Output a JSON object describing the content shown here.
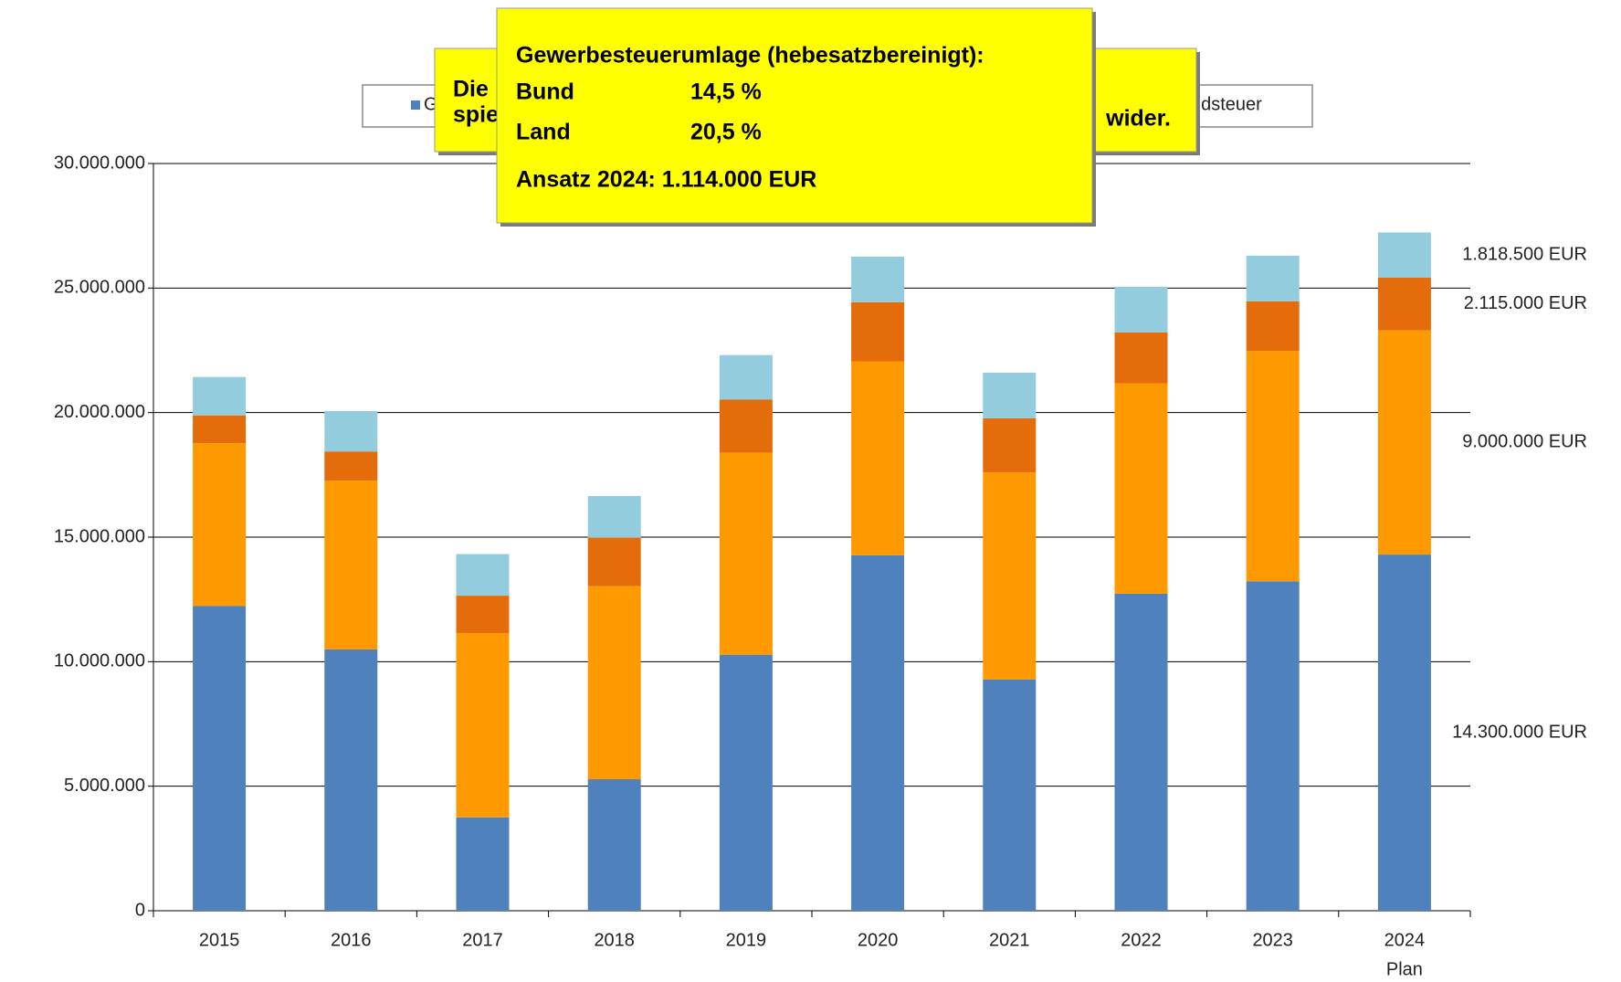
{
  "chart_data": {
    "type": "bar",
    "stacked": true,
    "categories": [
      "2015",
      "2016",
      "2017",
      "2018",
      "2019",
      "2020",
      "2021",
      "2022",
      "2023",
      "2024"
    ],
    "category_sublabels": [
      null,
      null,
      null,
      null,
      null,
      null,
      null,
      null,
      null,
      "Plan"
    ],
    "series": [
      {
        "color": "#4f81bd",
        "values": [
          12230000,
          10490000,
          3750000,
          5280000,
          10280000,
          14270000,
          9280000,
          12730000,
          13230000,
          14300000
        ],
        "value_labels": [
          null,
          null,
          null,
          null,
          null,
          null,
          null,
          null,
          null,
          "14.300.000 EUR"
        ]
      },
      {
        "color": "#ff9900",
        "values": [
          6540000,
          6780000,
          7400000,
          7750000,
          8110000,
          7790000,
          8320000,
          8450000,
          9240000,
          9000000
        ],
        "value_labels": [
          null,
          null,
          null,
          null,
          null,
          null,
          null,
          null,
          null,
          "9.000.000 EUR"
        ]
      },
      {
        "color": "#e46c0a",
        "values": [
          1120000,
          1170000,
          1500000,
          1950000,
          2130000,
          2370000,
          2170000,
          2040000,
          2000000,
          2115000
        ],
        "value_labels": [
          null,
          null,
          null,
          null,
          null,
          null,
          null,
          null,
          null,
          "2.115.000 EUR"
        ]
      },
      {
        "color": "#93cddd",
        "values": [
          1540000,
          1620000,
          1670000,
          1670000,
          1790000,
          1830000,
          1830000,
          1830000,
          1830000,
          1818500
        ],
        "value_labels": [
          null,
          null,
          null,
          null,
          null,
          null,
          null,
          null,
          null,
          "1.818.500 EUR"
        ]
      }
    ],
    "ylim": [
      0,
      30000000
    ],
    "yticks": [
      0,
      {
        "value": 5000000,
        "label": "5.000.000"
      },
      {
        "value": 10000000,
        "label": "10.000.000"
      },
      {
        "value": 15000000,
        "label": "15.000.000"
      },
      {
        "value": 20000000,
        "label": "20.000.000"
      },
      {
        "value": 25000000,
        "label": "25.000.000"
      },
      {
        "value": 30000000,
        "label": "30.000.000"
      }
    ],
    "grid": true,
    "legend_fragments": [
      "G",
      "ndsteuer"
    ],
    "callout_back": {
      "line1": "Die",
      "line2": "spie",
      "end": "wider."
    },
    "callout_front": {
      "title": "Gewerbesteuerumlage (hebesatzbereinigt):",
      "rows": [
        [
          "Bund",
          "14,5 %"
        ],
        [
          "Land",
          "20,5 %"
        ]
      ],
      "footer": "Ansatz 2024:  1.114.000 EUR"
    }
  }
}
